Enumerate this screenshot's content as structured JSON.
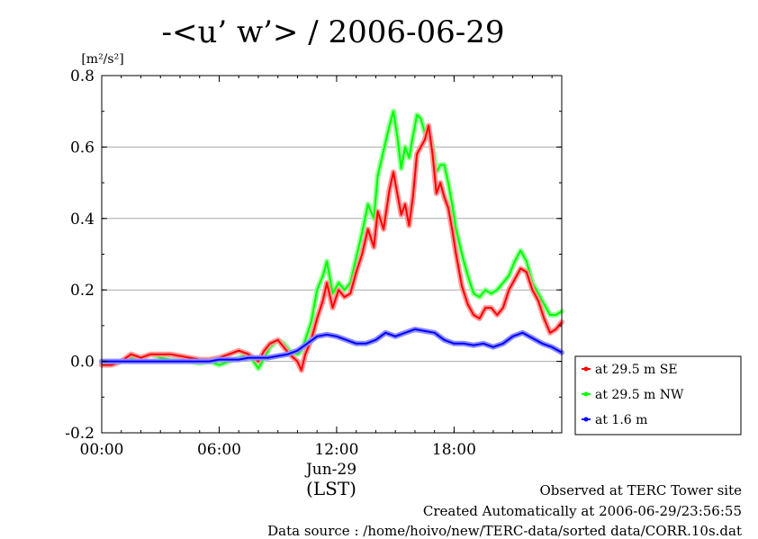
{
  "chart_data": {
    "type": "line",
    "title": "-<u’ w’> / 2006-06-29",
    "ylabel": "[m²/s²]",
    "xlabel_date": "Jun-29",
    "xlabel_unit": "(LST)",
    "x_unit": "hour of day (LST)",
    "xlim": [
      0,
      23.5
    ],
    "ylim": [
      -0.2,
      0.8
    ],
    "x_ticks": [
      {
        "value": 0,
        "label": "00:00"
      },
      {
        "value": 6,
        "label": "06:00"
      },
      {
        "value": 12,
        "label": "12:00"
      },
      {
        "value": 18,
        "label": "18:00"
      }
    ],
    "y_ticks": [
      {
        "value": -0.2,
        "label": "-0.2"
      },
      {
        "value": 0.0,
        "label": "0.0"
      },
      {
        "value": 0.2,
        "label": "0.2"
      },
      {
        "value": 0.4,
        "label": "0.4"
      },
      {
        "value": 0.6,
        "label": "0.6"
      },
      {
        "value": 0.8,
        "label": "0.8"
      }
    ],
    "grid": true,
    "legend_position": "right",
    "series": [
      {
        "name": "at 29.5 m SE",
        "color": "#ff0000",
        "halo": "#ff9a9a",
        "x": [
          0,
          0.5,
          1,
          1.5,
          2,
          2.5,
          3,
          3.5,
          4,
          4.5,
          5,
          5.5,
          6,
          6.5,
          7,
          7.5,
          8,
          8.3,
          8.6,
          9,
          9.3,
          9.6,
          10,
          10.2,
          10.4,
          10.7,
          11,
          11.3,
          11.5,
          11.8,
          12.1,
          12.4,
          12.7,
          13,
          13.3,
          13.6,
          13.9,
          14.1,
          14.4,
          14.7,
          14.9,
          15.1,
          15.3,
          15.5,
          15.7,
          15.9,
          16.1,
          16.3,
          16.5,
          16.7,
          16.9,
          17.1,
          17.3,
          17.5,
          17.7,
          17.9,
          18.1,
          18.4,
          18.7,
          19,
          19.3,
          19.6,
          19.9,
          20.2,
          20.5,
          20.8,
          21.1,
          21.4,
          21.7,
          22,
          22.3,
          22.6,
          22.9,
          23.2,
          23.5
        ],
        "values": [
          -0.01,
          -0.01,
          0.0,
          0.02,
          0.01,
          0.02,
          0.02,
          0.02,
          0.015,
          0.01,
          0.005,
          0.005,
          0.01,
          0.02,
          0.03,
          0.02,
          0.0,
          0.03,
          0.05,
          0.06,
          0.04,
          0.02,
          0.0,
          -0.025,
          0.02,
          0.06,
          0.12,
          0.17,
          0.22,
          0.15,
          0.2,
          0.18,
          0.19,
          0.25,
          0.3,
          0.37,
          0.32,
          0.42,
          0.37,
          0.48,
          0.53,
          0.47,
          0.41,
          0.44,
          0.38,
          0.46,
          0.58,
          0.6,
          0.62,
          0.66,
          0.58,
          0.47,
          0.5,
          0.46,
          0.43,
          0.37,
          0.3,
          0.21,
          0.16,
          0.13,
          0.12,
          0.15,
          0.15,
          0.13,
          0.15,
          0.2,
          0.23,
          0.26,
          0.25,
          0.2,
          0.17,
          0.12,
          0.08,
          0.09,
          0.11
        ]
      },
      {
        "name": "at 29.5 m NW",
        "color": "#00ff00",
        "halo": "#9aff9a",
        "x": [
          0,
          0.5,
          1,
          1.5,
          2,
          2.5,
          3,
          3.5,
          4,
          4.5,
          5,
          5.5,
          6,
          6.5,
          7,
          7.5,
          8,
          8.3,
          8.6,
          9,
          9.3,
          9.6,
          10,
          10.2,
          10.4,
          10.7,
          11,
          11.3,
          11.5,
          11.8,
          12.1,
          12.4,
          12.7,
          13,
          13.3,
          13.6,
          13.9,
          14.1,
          14.4,
          14.7,
          14.9,
          15.1,
          15.3,
          15.5,
          15.7,
          15.9,
          16.1,
          16.3,
          16.5,
          16.7,
          16.9,
          17.1,
          17.3,
          17.5,
          17.7,
          17.9,
          18.1,
          18.4,
          18.7,
          19,
          19.3,
          19.6,
          19.9,
          20.2,
          20.5,
          20.8,
          21.1,
          21.4,
          21.7,
          22,
          22.3,
          22.6,
          22.9,
          23.2,
          23.5
        ],
        "values": [
          0.0,
          -0.01,
          0.0,
          0.01,
          0.01,
          0.02,
          0.01,
          0.005,
          0.0,
          0.0,
          -0.005,
          0.0,
          -0.01,
          0.0,
          0.01,
          0.02,
          -0.02,
          0.01,
          0.04,
          0.06,
          0.05,
          0.03,
          0.02,
          0.03,
          0.06,
          0.11,
          0.2,
          0.24,
          0.28,
          0.19,
          0.22,
          0.2,
          0.22,
          0.29,
          0.36,
          0.44,
          0.4,
          0.52,
          0.59,
          0.66,
          0.7,
          0.63,
          0.54,
          0.6,
          0.57,
          0.63,
          0.69,
          0.68,
          0.64,
          0.65,
          0.6,
          0.53,
          0.55,
          0.55,
          0.5,
          0.44,
          0.37,
          0.3,
          0.24,
          0.19,
          0.18,
          0.2,
          0.19,
          0.2,
          0.22,
          0.24,
          0.28,
          0.31,
          0.28,
          0.22,
          0.19,
          0.16,
          0.13,
          0.13,
          0.14
        ]
      },
      {
        "name": "at 1.6 m",
        "color": "#0000ff",
        "halo": "#8c8cff",
        "x": [
          0,
          0.5,
          1,
          1.5,
          2,
          2.5,
          3,
          3.5,
          4,
          4.5,
          5,
          5.5,
          6,
          6.5,
          7,
          7.5,
          8,
          8.5,
          9,
          9.5,
          10,
          10.5,
          11,
          11.5,
          12,
          12.5,
          13,
          13.5,
          14,
          14.5,
          15,
          15.5,
          16,
          16.5,
          17,
          17.5,
          18,
          18.5,
          19,
          19.5,
          20,
          20.5,
          21,
          21.5,
          22,
          22.5,
          23,
          23.5
        ],
        "values": [
          0.0,
          0.0,
          0.0,
          0.0,
          0.0,
          0.0,
          0.0,
          0.0,
          0.0,
          0.0,
          0.0,
          0.0,
          0.005,
          0.005,
          0.005,
          0.01,
          0.01,
          0.01,
          0.015,
          0.02,
          0.03,
          0.05,
          0.07,
          0.075,
          0.07,
          0.06,
          0.05,
          0.05,
          0.06,
          0.08,
          0.07,
          0.08,
          0.09,
          0.085,
          0.08,
          0.06,
          0.05,
          0.05,
          0.045,
          0.05,
          0.04,
          0.05,
          0.07,
          0.08,
          0.065,
          0.05,
          0.04,
          0.025
        ]
      }
    ]
  },
  "footer": {
    "site": "Observed at TERC Tower site",
    "created": "Created Automatically at 2006-06-29/23:56:55",
    "source": "Data source : /home/hoivo/new/TERC-data/sorted  data/CORR.10s.dat"
  }
}
